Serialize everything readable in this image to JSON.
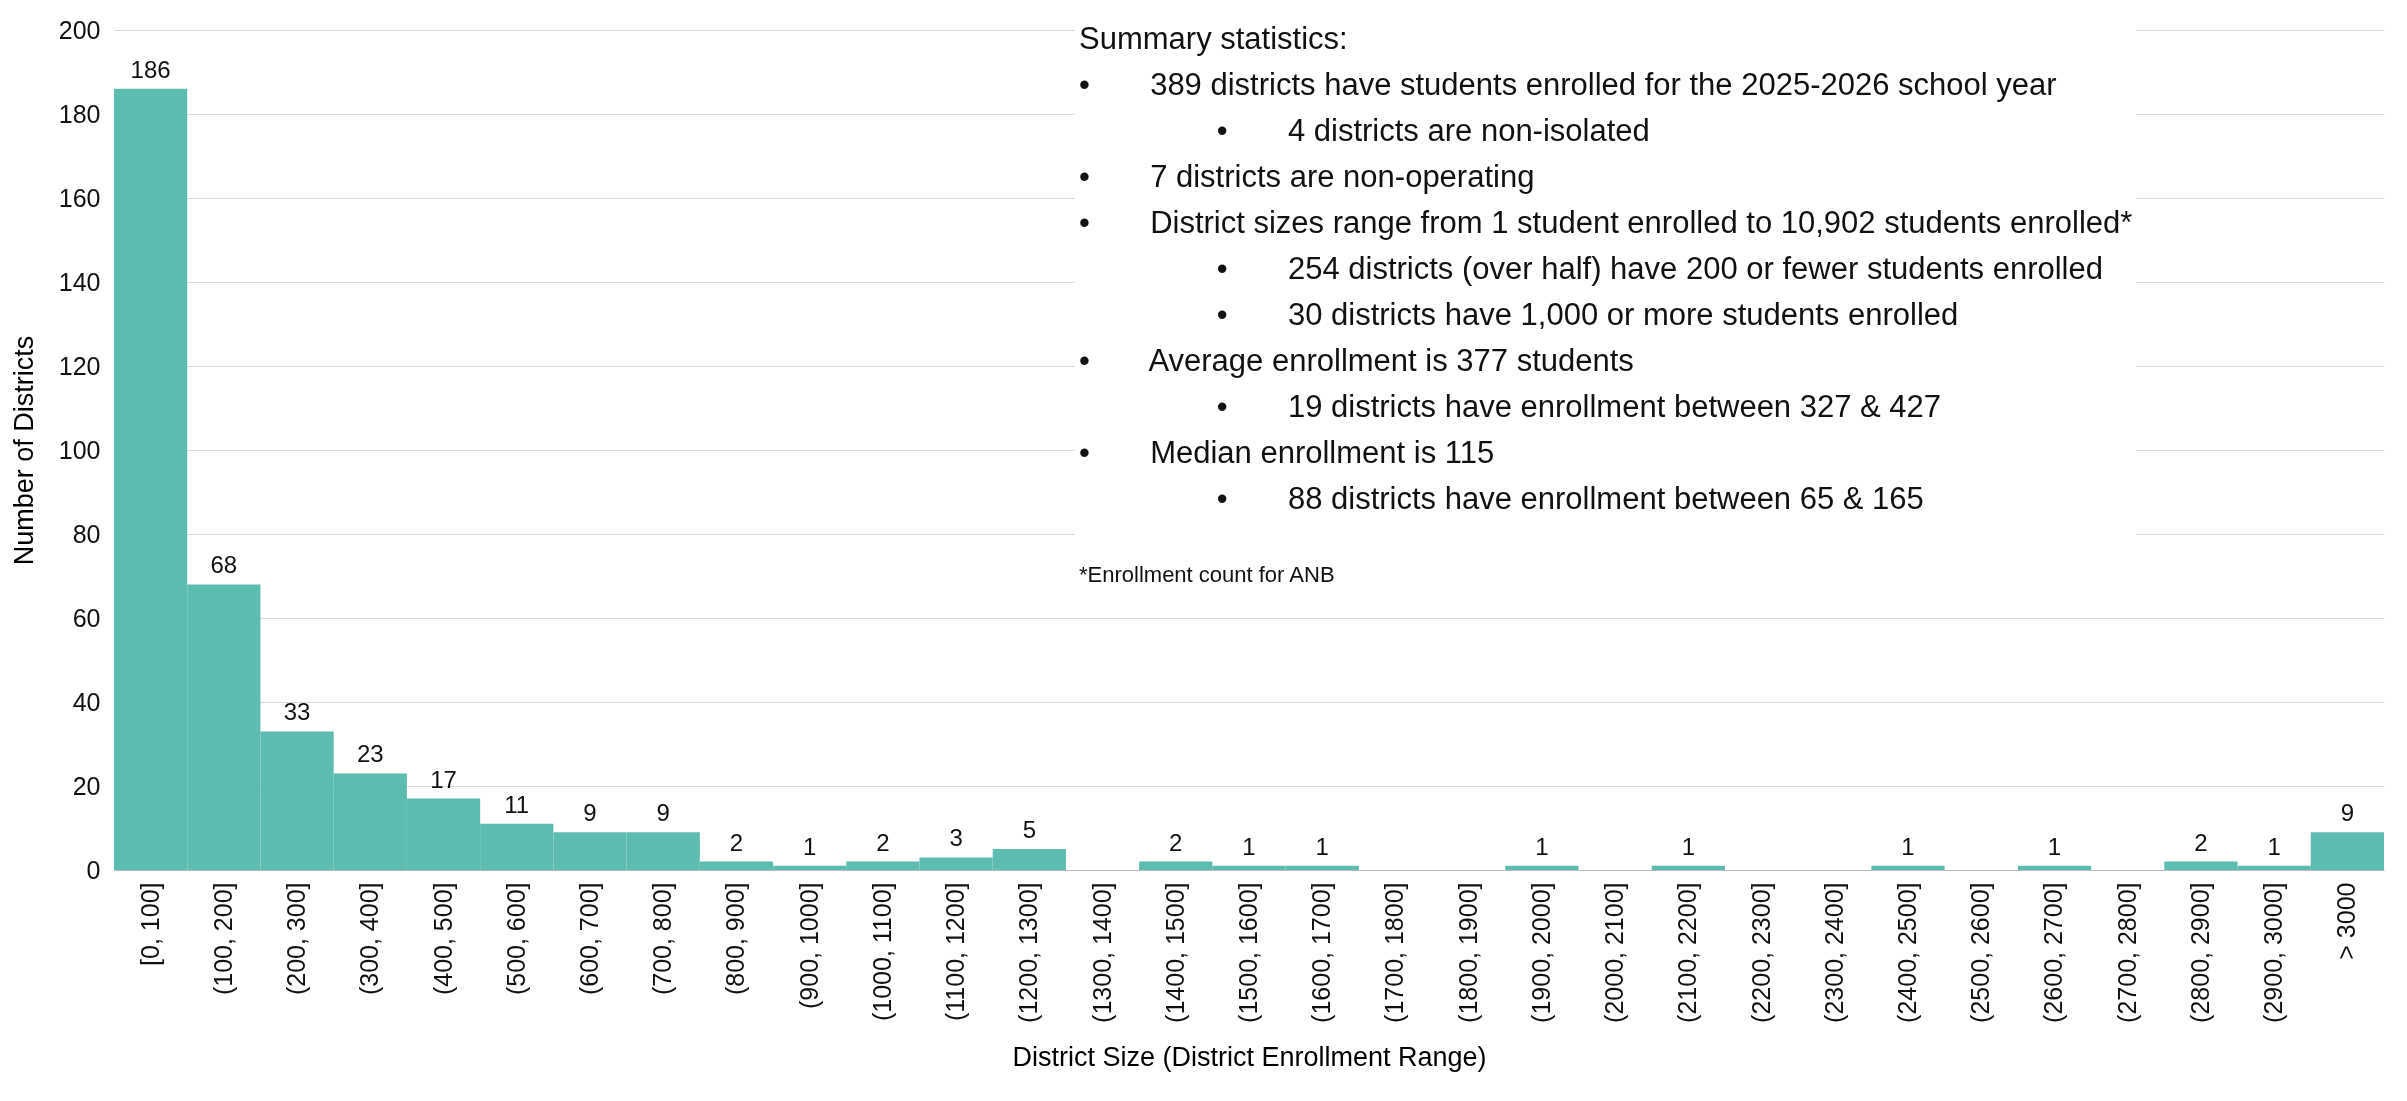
{
  "chart_data": {
    "type": "bar",
    "xlabel": "District Size (District Enrollment Range)",
    "ylabel": "Number of Districts",
    "categories": [
      "[0, 100]",
      "(100, 200]",
      "(200, 300]",
      "(300, 400]",
      "(400, 500]",
      "(500, 600]",
      "(600, 700]",
      "(700, 800]",
      "(800, 900]",
      "(900, 1000]",
      "(1000, 1100]",
      "(1100, 1200]",
      "(1200, 1300]",
      "(1300, 1400]",
      "(1400, 1500]",
      "(1500, 1600]",
      "(1600, 1700]",
      "(1700, 1800]",
      "(1800, 1900]",
      "(1900, 2000]",
      "(2000, 2100]",
      "(2100, 2200]",
      "(2200, 2300]",
      "(2300, 2400]",
      "(2400, 2500]",
      "(2500, 2600]",
      "(2600, 2700]",
      "(2700, 2800]",
      "(2800, 2900]",
      "(2900, 3000]",
      "> 3000"
    ],
    "values": [
      186,
      68,
      33,
      23,
      17,
      11,
      9,
      9,
      2,
      1,
      2,
      3,
      5,
      0,
      2,
      1,
      1,
      0,
      0,
      1,
      0,
      1,
      0,
      0,
      1,
      0,
      1,
      0,
      2,
      1,
      9
    ],
    "value_labels": [
      "186",
      "68",
      "33",
      "23",
      "17",
      "11",
      "9",
      "9",
      "2",
      "1",
      "2",
      "3",
      "5",
      null,
      "2",
      "1",
      "1",
      null,
      null,
      "1",
      null,
      "1",
      null,
      null,
      "1",
      null,
      "1",
      null,
      "2",
      "1",
      "9"
    ],
    "color": "#5dbcb0",
    "ylim": [
      0,
      200
    ],
    "yticks": [
      0,
      20,
      40,
      60,
      80,
      100,
      120,
      140,
      160,
      180,
      200
    ],
    "grid": "y",
    "annotations": [
      "Summary statistics:",
      "•       389 districts have students enrolled for the 2025-2026 school year",
      "                •       4 districts are non-isolated",
      "•       7 districts are non-operating",
      "•       District sizes range from 1 student enrolled to 10,902 students enrolled*",
      "                •       254 districts (over half) have 200 or fewer students enrolled",
      "                •       30 districts have 1,000 or more students enrolled",
      "•       Average enrollment is 377 students",
      "                •       19 districts have enrollment between 327 & 427",
      "•       Median enrollment is 115",
      "                •       88 districts have enrollment between 65 & 165",
      "*Enrollment count for ANB"
    ]
  }
}
